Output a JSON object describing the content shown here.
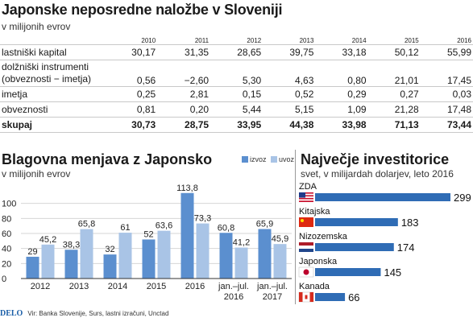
{
  "table": {
    "title": "Japonske neposredne naložbe v Sloveniji",
    "subtitle": "v milijonih evrov",
    "years": [
      "2010",
      "2011",
      "2012",
      "2013",
      "2014",
      "2015",
      "2016"
    ],
    "rows": [
      {
        "label": "lastniški kapital",
        "values": [
          "30,17",
          "31,35",
          "28,65",
          "39,75",
          "33,18",
          "50,12",
          "55,99"
        ]
      },
      {
        "label": "dolžniški instrumenti",
        "label2": "(obveznosti − imetja)",
        "values": [
          "0,56",
          "−2,60",
          "5,30",
          "4,63",
          "0,80",
          "21,01",
          "17,45"
        ]
      },
      {
        "label": "imetja",
        "values": [
          "0,25",
          "2,81",
          "0,15",
          "0,52",
          "0,29",
          "0,27",
          "0,03"
        ]
      },
      {
        "label": "obveznosti",
        "values": [
          "0,81",
          "0,20",
          "5,44",
          "5,15",
          "1,09",
          "21,28",
          "17,48"
        ]
      },
      {
        "label": "skupaj",
        "values": [
          "30,73",
          "28,75",
          "33,95",
          "44,38",
          "33,98",
          "71,13",
          "73,44"
        ]
      }
    ]
  },
  "trade": {
    "title": "Blagovna menjava z Japonsko",
    "subtitle": "v milijonih evrov",
    "legend_izvoz": "izvoz",
    "legend_uvoz": "uvoz"
  },
  "investors": {
    "title": "Največje investitorice",
    "subtitle": "svet, v milijardah dolarjev, leto 2016"
  },
  "footer": {
    "brand": "DELO",
    "source": "Vir: Banka Slovenije, Surs, lastni izračuni, Unctad"
  },
  "colors": {
    "izvoz": "#5b8fcf",
    "uvoz": "#a9c4e6",
    "hbar": "#2f6cb5"
  },
  "chart_data": [
    {
      "type": "bar",
      "title": "Blagovna menjava z Japonsko",
      "subtitle": "v milijonih evrov",
      "categories": [
        "2012",
        "2013",
        "2014",
        "2015",
        "2016",
        "jan.–jul. 2016",
        "jan.–jul. 2017"
      ],
      "category_lines": [
        [
          "2012"
        ],
        [
          "2013"
        ],
        [
          "2014"
        ],
        [
          "2015"
        ],
        [
          "2016"
        ],
        [
          "jan.–jul.",
          "2016"
        ],
        [
          "jan.–jul.",
          "2017"
        ]
      ],
      "series": [
        {
          "name": "izvoz",
          "values": [
            29,
            38.3,
            32,
            52,
            113.8,
            60.8,
            65.9
          ],
          "labels": [
            "29",
            "38,3",
            "32",
            "52",
            "113,8",
            "60,8",
            "65,9"
          ]
        },
        {
          "name": "uvoz",
          "values": [
            45.2,
            65.8,
            61,
            63.6,
            73.3,
            41.2,
            45.9
          ],
          "labels": [
            "45,2",
            "65,8",
            "61",
            "63,6",
            "73,3",
            "41,2",
            "45,9"
          ]
        }
      ],
      "yticks": [
        "0",
        "20",
        "40",
        "60",
        "80",
        "100"
      ],
      "ylim": [
        0,
        120
      ],
      "legend_placement": "top-right"
    },
    {
      "type": "bar",
      "orientation": "horizontal",
      "title": "Največje investitorice",
      "subtitle": "svet, v milijardah dolarjev, leto 2016",
      "categories": [
        "ZDA",
        "Kitajska",
        "Nizozemska",
        "Japonska",
        "Kanada"
      ],
      "flags": [
        "us-flag-icon",
        "cn-flag-icon",
        "nl-flag-icon",
        "jp-flag-icon",
        "ca-flag-icon"
      ],
      "values": [
        299,
        183,
        174,
        145,
        66
      ],
      "labels": [
        "299",
        "183",
        "174",
        "145",
        "66"
      ]
    }
  ]
}
